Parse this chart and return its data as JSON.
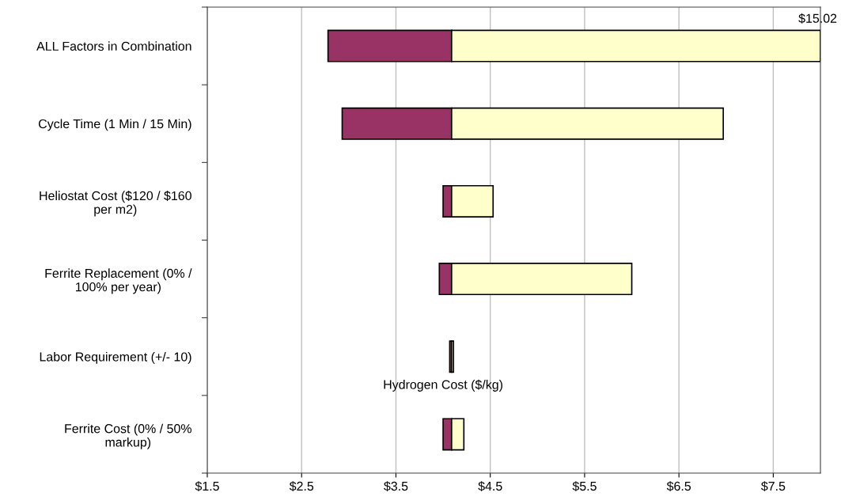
{
  "chart_data": {
    "type": "bar",
    "orientation": "horizontal",
    "xlabel": "Hydrogen Cost ($/kg)",
    "categories": [
      "ALL Factors in Combination",
      "Cycle Time (1 Min / 15 Min)",
      "Heliostat Cost ($120 / $160\nper m2)",
      "Ferrite Replacement (0% /\n100% per year)",
      "Labor Requirement (+/- 10)",
      "Ferrite Cost (0% / 50%\nmarkup)"
    ],
    "series": [
      {
        "color": "#993366",
        "base": [
          2.78,
          2.93,
          4.0,
          3.96,
          4.07,
          4.0
        ],
        "values": [
          1.31,
          1.16,
          0.09,
          0.13,
          0.02,
          0.09
        ]
      },
      {
        "color": "#ffffcc",
        "base": [
          4.09,
          4.09,
          4.09,
          4.09,
          4.09,
          4.09
        ],
        "values": [
          3.91,
          2.88,
          0.44,
          1.91,
          0.02,
          0.13
        ]
      }
    ],
    "annotations": [
      "$15.02"
    ],
    "xlim": [
      1.5,
      8.0
    ],
    "xticks": [
      {
        "value": 1.5,
        "label": "$1.5"
      },
      {
        "value": 2.5,
        "label": "$2.5"
      },
      {
        "value": 3.5,
        "label": "$3.5"
      },
      {
        "value": 4.5,
        "label": "$4.5"
      },
      {
        "value": 5.5,
        "label": "$5.5"
      },
      {
        "value": 6.5,
        "label": "$6.5"
      },
      {
        "value": 7.5,
        "label": "$7.5"
      }
    ],
    "grid": "x"
  }
}
